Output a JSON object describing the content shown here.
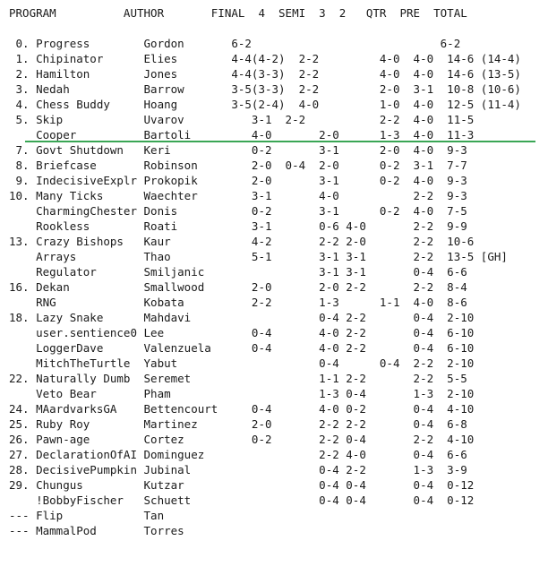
{
  "standings": {
    "header": "PROGRAM          AUTHOR       FINAL  4  SEMI  3  2   QTR  PRE  TOTAL",
    "blank": "",
    "rows": [
      " 0. Progress        Gordon       6-2                            6-2",
      " 1. Chipinator      Elies        4-4(4-2)  2-2         4-0  4-0  14-6 (14-4)",
      " 2. Hamilton        Jones        4-4(3-3)  2-2         4-0  4-0  14-6 (13-5)",
      " 3. Nedah           Barrow       3-5(3-3)  2-2         2-0  3-1  10-8 (10-6)",
      " 4. Chess Buddy     Hoang        3-5(2-4)  4-0         1-0  4-0  12-5 (11-4)",
      " 5. Skip            Uvarov          3-1  2-2           2-2  4-0  11-5",
      "    Cooper          Bartoli         4-0       2-0      1-3  4-0  11-3",
      " 7. Govt Shutdown   Keri            0-2       3-1      2-0  4-0  9-3",
      " 8. Briefcase       Robinson        2-0  0-4  2-0      0-2  3-1  7-7",
      " 9. IndecisiveExplr Prokopik        2-0       3-1      0-2  4-0  9-3",
      "10. Many Ticks      Waechter        3-1       4-0           2-2  9-3",
      "    CharmingChester Donis           0-2       3-1      0-2  4-0  7-5",
      "    Rookless        Roati           3-1       0-6 4-0       2-2  9-9",
      "13. Crazy Bishops   Kaur            4-2       2-2 2-0       2-2  10-6",
      "    Arrays          Thao            5-1       3-1 3-1       2-2  13-5 [GH]",
      "    Regulator       Smiljanic                 3-1 3-1       0-4  6-6",
      "16. Dekan           Smallwood       2-0       2-0 2-2       2-2  8-4",
      "    RNG             Kobata          2-2       1-3      1-1  4-0  8-6",
      "18. Lazy Snake      Mahdavi                   0-4 2-2       0-4  2-10",
      "    user.sentience0 Lee             0-4       4-0 2-2       0-4  6-10",
      "    LoggerDave      Valenzuela      0-4       4-0 2-2       0-4  6-10",
      "    MitchTheTurtle  Yabut                     0-4      0-4  2-2  2-10",
      "22. Naturally Dumb  Seremet                   1-1 2-2       2-2  5-5",
      "    Veto Bear       Pham                      1-3 0-4       1-3  2-10",
      "24. MAardvarksGA    Bettencourt     0-4       4-0 0-2       0-4  4-10",
      "25. Ruby Roy        Martinez        2-0       2-2 2-2       0-4  6-8",
      "26. Pawn-age        Cortez          0-2       2-2 0-4       2-2  4-10",
      "27. DeclarationOfAI Dominguez                 2-2 4-0       0-4  6-6",
      "28. DecisivePumpkin Jubinal                   0-4 2-2       1-3  3-9",
      "29. Chungus         Kutzar                    0-4 0-4       0-4  0-12",
      "    !BobbyFischer   Schuett                   0-4 0-4       0-4  0-12",
      "--- Flip            Tan",
      "--- MammalPod       Torres"
    ]
  },
  "colors": {
    "divider": "#3aa655",
    "text": "#1a1a1a"
  }
}
